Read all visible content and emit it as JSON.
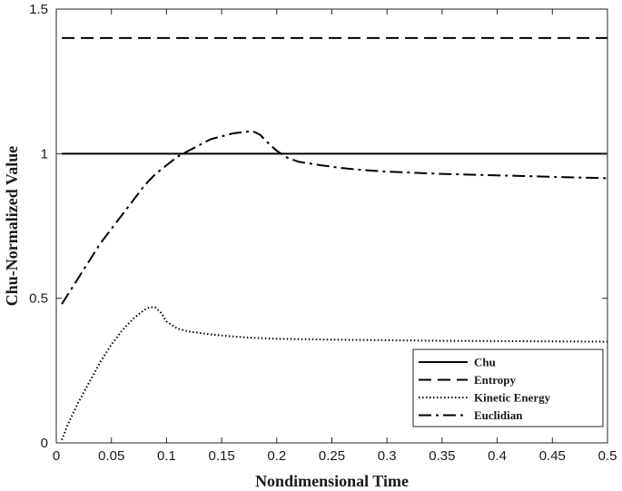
{
  "chart_data": {
    "type": "line",
    "xlabel": "Nondimensional Time",
    "ylabel": "Chu-Normalized Value",
    "xlim": [
      0,
      0.5
    ],
    "ylim": [
      0,
      1.5
    ],
    "xticks": [
      0,
      0.05,
      0.1,
      0.15,
      0.2,
      0.25,
      0.3,
      0.35,
      0.4,
      0.45,
      0.5
    ],
    "xtick_labels": [
      "0",
      "0.05",
      "0.1",
      "0.15",
      "0.2",
      "0.25",
      "0.3",
      "0.35",
      "0.4",
      "0.45",
      "0.5"
    ],
    "yticks": [
      0,
      0.5,
      1,
      1.5
    ],
    "ytick_labels": [
      "0",
      "0.5",
      "1",
      "1.5"
    ],
    "grid": false,
    "legend_position": "bottom-right",
    "series": [
      {
        "name": "Chu",
        "style": "solid",
        "x": [
          0.005,
          0.5
        ],
        "y": [
          1.0,
          1.0
        ]
      },
      {
        "name": "Entropy",
        "style": "dashed",
        "x": [
          0.005,
          0.5
        ],
        "y": [
          1.4,
          1.4
        ]
      },
      {
        "name": "Kinetic Energy",
        "style": "dotted",
        "x": [
          0.005,
          0.01,
          0.02,
          0.03,
          0.04,
          0.05,
          0.06,
          0.07,
          0.08,
          0.085,
          0.09,
          0.095,
          0.1,
          0.11,
          0.12,
          0.14,
          0.16,
          0.18,
          0.2,
          0.25,
          0.3,
          0.35,
          0.4,
          0.45,
          0.5
        ],
        "y": [
          0.01,
          0.06,
          0.14,
          0.21,
          0.28,
          0.34,
          0.39,
          0.43,
          0.46,
          0.47,
          0.468,
          0.45,
          0.42,
          0.395,
          0.385,
          0.375,
          0.368,
          0.363,
          0.36,
          0.357,
          0.355,
          0.353,
          0.352,
          0.351,
          0.35
        ]
      },
      {
        "name": "Euclidian",
        "style": "dashdot",
        "x": [
          0.005,
          0.01,
          0.02,
          0.03,
          0.04,
          0.05,
          0.06,
          0.07,
          0.08,
          0.09,
          0.1,
          0.11,
          0.12,
          0.13,
          0.14,
          0.15,
          0.16,
          0.17,
          0.175,
          0.18,
          0.185,
          0.19,
          0.2,
          0.21,
          0.22,
          0.24,
          0.26,
          0.28,
          0.3,
          0.35,
          0.4,
          0.45,
          0.5
        ],
        "y": [
          0.48,
          0.51,
          0.57,
          0.63,
          0.69,
          0.74,
          0.79,
          0.84,
          0.89,
          0.93,
          0.96,
          0.99,
          1.01,
          1.03,
          1.05,
          1.06,
          1.07,
          1.075,
          1.077,
          1.075,
          1.065,
          1.045,
          1.01,
          0.985,
          0.972,
          0.96,
          0.95,
          0.943,
          0.938,
          0.93,
          0.925,
          0.92,
          0.915
        ]
      }
    ]
  }
}
